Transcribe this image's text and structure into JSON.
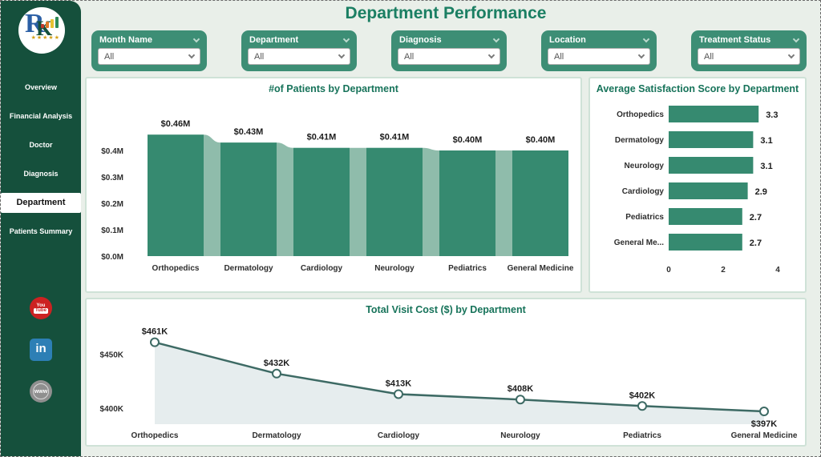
{
  "header": {
    "title": "Department Performance"
  },
  "sidebar": {
    "logo": {
      "letter_primary": "R",
      "letter_secondary": "K",
      "stars": "★★★★★"
    },
    "items": [
      {
        "label": "Overview",
        "active": false
      },
      {
        "label": "Financial Analysis",
        "active": false
      },
      {
        "label": "Doctor",
        "active": false
      },
      {
        "label": "Diagnosis",
        "active": false
      },
      {
        "label": "Department",
        "active": true
      },
      {
        "label": "Patients Summary",
        "active": false
      }
    ],
    "social": {
      "youtube_top": "You",
      "youtube_bottom": "Tube",
      "linkedin": "in",
      "website": "www"
    }
  },
  "filters": [
    {
      "label": "Month Name",
      "value": "All"
    },
    {
      "label": "Department",
      "value": "All"
    },
    {
      "label": "Diagnosis",
      "value": "All"
    },
    {
      "label": "Location",
      "value": "All"
    },
    {
      "label": "Treatment Status",
      "value": "All"
    }
  ],
  "colors": {
    "sidebar": "#15503c",
    "accent": "#3d8e75",
    "bar": "#368a70",
    "connector": "#8fbcab",
    "line": "#3d6a64",
    "area": "#e6edee",
    "title": "#1b7f63"
  },
  "chart_data": [
    {
      "type": "bar",
      "subtype": "funnel-connected",
      "title": "#of Patients by Department",
      "categories": [
        "Orthopedics",
        "Dermatology",
        "Cardiology",
        "Neurology",
        "Pediatrics",
        "General Medicine"
      ],
      "values": [
        0.46,
        0.43,
        0.41,
        0.41,
        0.4,
        0.4
      ],
      "data_labels": [
        "$0.46M",
        "$0.43M",
        "$0.41M",
        "$0.41M",
        "$0.40M",
        "$0.40M"
      ],
      "ylabel": "",
      "xlabel": "",
      "ylim": [
        0,
        0.5
      ],
      "yticks": [
        {
          "v": 0.0,
          "label": "$0.0M"
        },
        {
          "v": 0.1,
          "label": "$0.1M"
        },
        {
          "v": 0.2,
          "label": "$0.2M"
        },
        {
          "v": 0.3,
          "label": "$0.3M"
        },
        {
          "v": 0.4,
          "label": "$0.4M"
        }
      ],
      "grid": false,
      "legend": false
    },
    {
      "type": "bar",
      "orientation": "horizontal",
      "title": "Average Satisfaction Score by Department",
      "categories": [
        "Orthopedics",
        "Dermatology",
        "Neurology",
        "Cardiology",
        "Pediatrics",
        "General Me..."
      ],
      "values": [
        3.3,
        3.1,
        3.1,
        2.9,
        2.7,
        2.7
      ],
      "data_labels": [
        "3.3",
        "3.1",
        "3.1",
        "2.9",
        "2.7",
        "2.7"
      ],
      "xlim": [
        0,
        4
      ],
      "xticks": [
        {
          "v": 0,
          "label": "0"
        },
        {
          "v": 2,
          "label": "2"
        },
        {
          "v": 4,
          "label": "4"
        }
      ],
      "grid": false,
      "legend": false
    },
    {
      "type": "line",
      "subtype": "area-markers",
      "title": "Total Visit Cost ($) by Department",
      "categories": [
        "Orthopedics",
        "Dermatology",
        "Cardiology",
        "Neurology",
        "Pediatrics",
        "General Medicine"
      ],
      "values": [
        461,
        432,
        413,
        408,
        402,
        397
      ],
      "data_labels": [
        "$461K",
        "$432K",
        "$413K",
        "$408K",
        "$402K",
        "$397K"
      ],
      "ylim": [
        390,
        470
      ],
      "yticks": [
        {
          "v": 400,
          "label": "$400K"
        },
        {
          "v": 450,
          "label": "$450K"
        }
      ],
      "grid": false,
      "legend": false
    }
  ]
}
